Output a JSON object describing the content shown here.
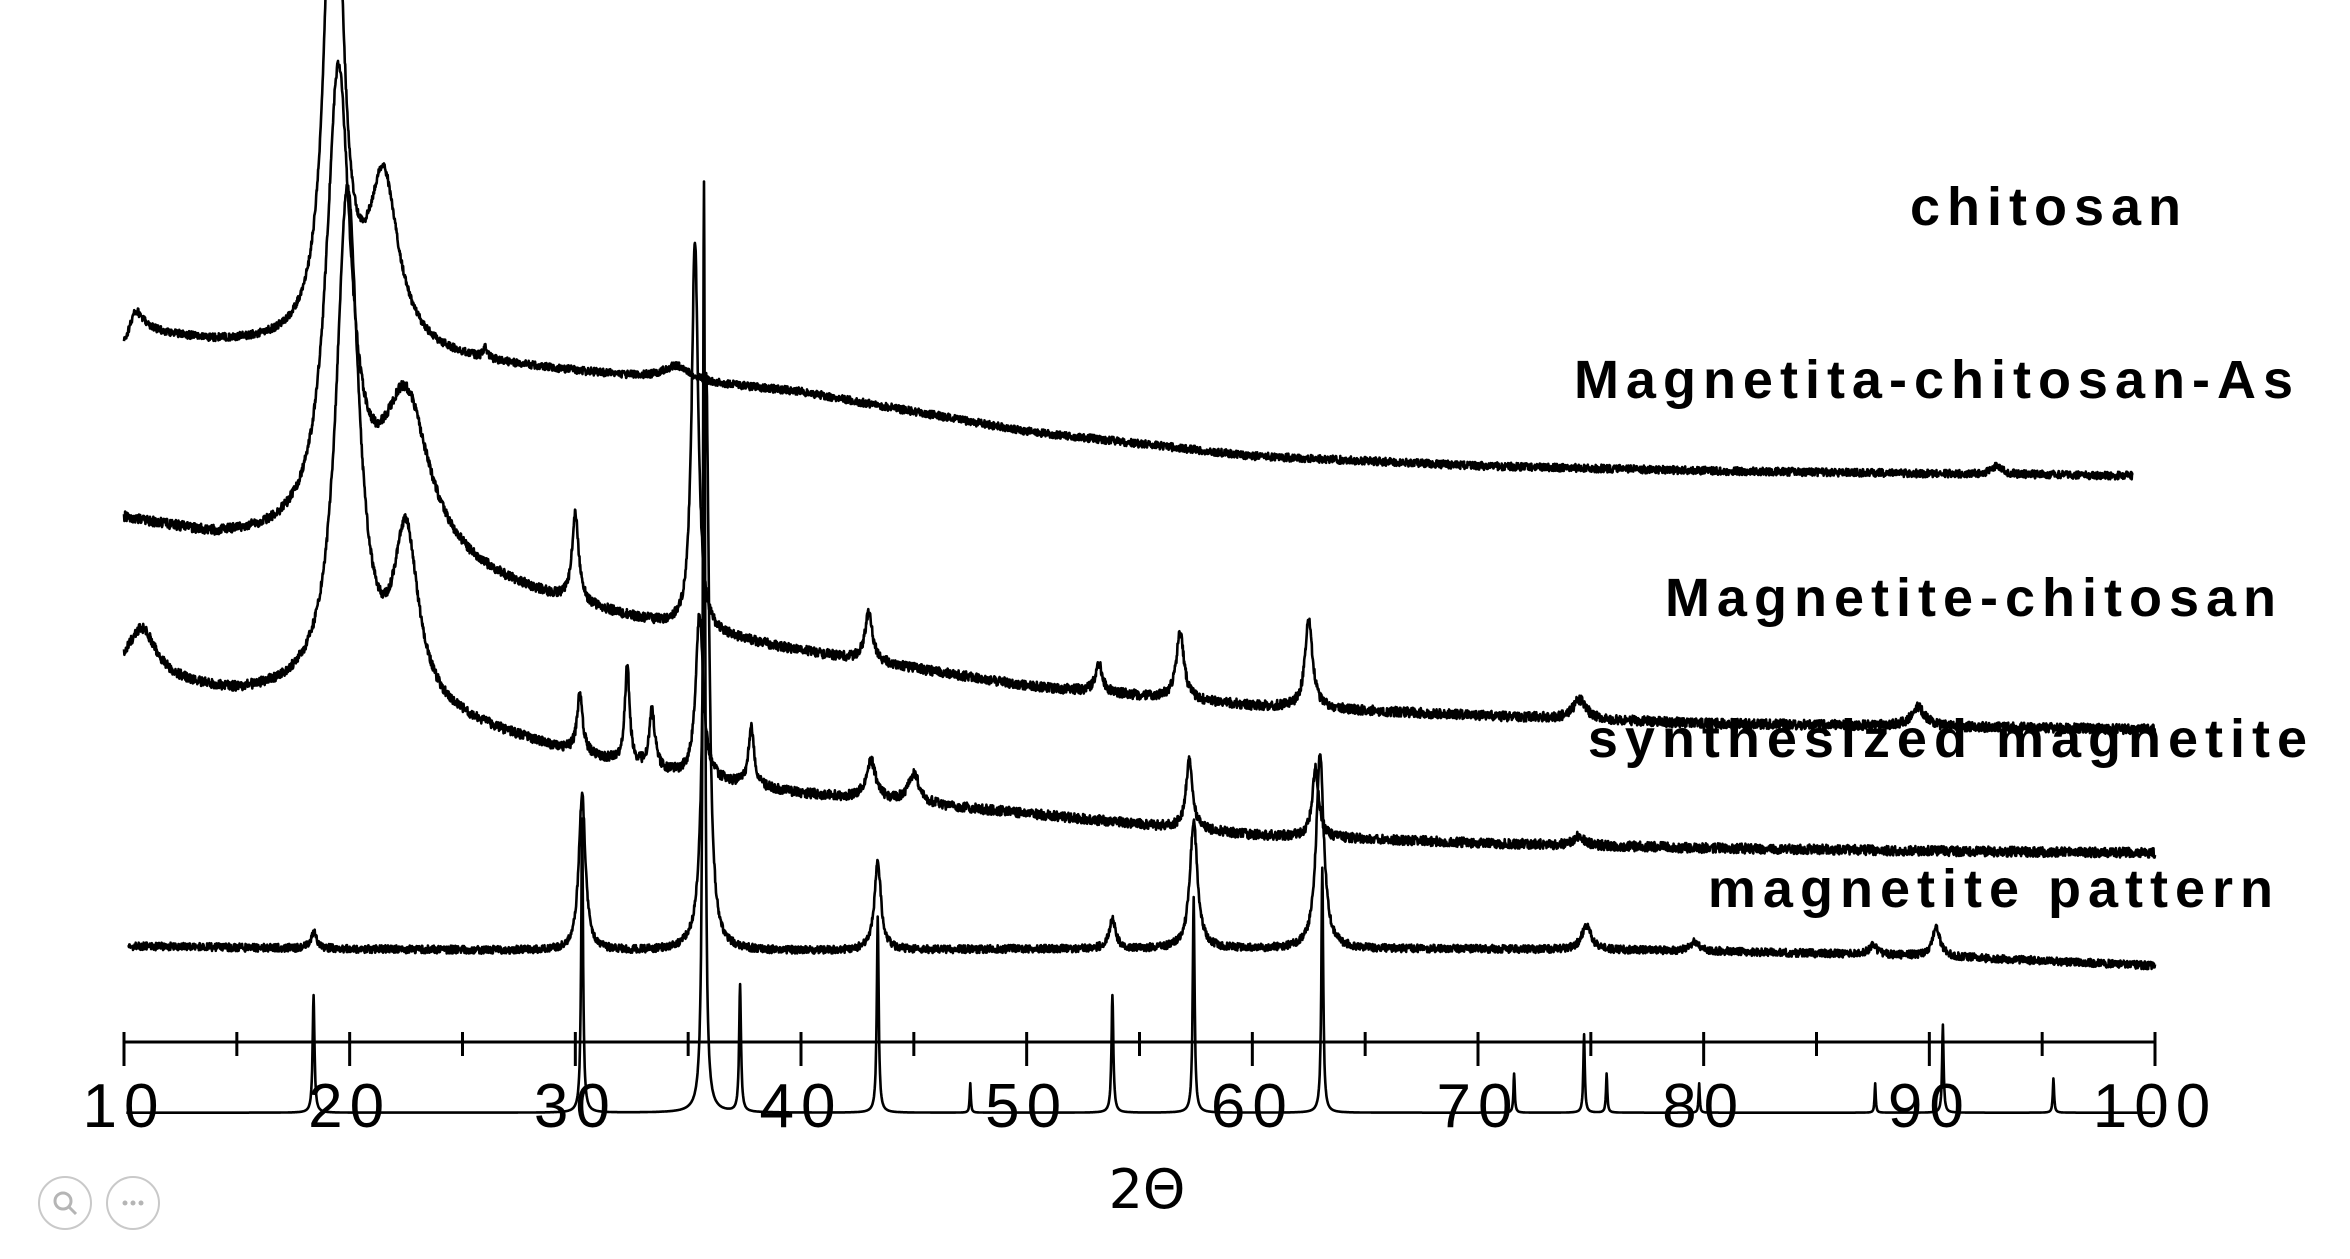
{
  "chart_data": {
    "type": "line",
    "title": "",
    "xlabel": "2Θ",
    "ylabel": "",
    "xlim": [
      10,
      100
    ],
    "x_ticks": [
      10,
      20,
      30,
      40,
      50,
      60,
      70,
      80,
      90,
      100
    ],
    "x_tick_labels": [
      "10",
      "20",
      "30",
      "40",
      "50",
      "60",
      "70",
      "80",
      "90",
      "100"
    ],
    "grid": false,
    "legend": "none",
    "y_axis_visible": false,
    "series": [
      {
        "name": "chitosan",
        "baseline": [
          [
            10,
            0.66
          ],
          [
            11,
            0.68
          ],
          [
            14,
            0.67
          ],
          [
            20,
            0.66
          ],
          [
            30,
            0.64
          ],
          [
            40,
            0.62
          ],
          [
            50,
            0.58
          ],
          [
            60,
            0.555
          ],
          [
            70,
            0.545
          ],
          [
            80,
            0.54
          ],
          [
            90,
            0.537
          ],
          [
            99,
            0.535
          ]
        ],
        "peaks": [
          [
            10.5,
            0.03,
            0.7
          ],
          [
            19.3,
            0.58,
            0.9
          ],
          [
            21.5,
            0.17,
            1.6
          ],
          [
            26,
            0.01,
            0.2
          ],
          [
            34.5,
            0.015,
            1.5
          ],
          [
            93,
            0.008,
            0.6
          ]
        ],
        "noise": 0.004
      },
      {
        "name": "Magnetita-chitosan-As",
        "baseline": [
          [
            10,
            0.49
          ],
          [
            14,
            0.47
          ],
          [
            20,
            0.46
          ],
          [
            25,
            0.43
          ],
          [
            30,
            0.4
          ],
          [
            35,
            0.375
          ],
          [
            40,
            0.355
          ],
          [
            50,
            0.32
          ],
          [
            60,
            0.3
          ],
          [
            70,
            0.29
          ],
          [
            80,
            0.282
          ],
          [
            90,
            0.279
          ],
          [
            100,
            0.276
          ]
        ],
        "peaks": [
          [
            19.5,
            0.47,
            1.3
          ],
          [
            22.5,
            0.16,
            2.5
          ],
          [
            30,
            0.09,
            0.35
          ],
          [
            35.3,
            0.4,
            0.35
          ],
          [
            43,
            0.05,
            0.4
          ],
          [
            53.2,
            0.03,
            0.35
          ],
          [
            56.8,
            0.07,
            0.4
          ],
          [
            62.5,
            0.09,
            0.4
          ],
          [
            74.5,
            0.02,
            0.7
          ],
          [
            89.5,
            0.02,
            0.7
          ]
        ],
        "noise": 0.005
      },
      {
        "name": "Magnetite-chitosan",
        "baseline": [
          [
            10,
            0.33
          ],
          [
            15,
            0.31
          ],
          [
            20,
            0.31
          ],
          [
            25,
            0.28
          ],
          [
            30,
            0.25
          ],
          [
            35,
            0.225
          ],
          [
            40,
            0.21
          ],
          [
            50,
            0.19
          ],
          [
            60,
            0.168
          ],
          [
            70,
            0.16
          ],
          [
            80,
            0.155
          ],
          [
            90,
            0.152
          ],
          [
            100,
            0.15
          ]
        ],
        "peaks": [
          [
            10.8,
            0.05,
            1.5
          ],
          [
            19.9,
            0.51,
            1.2
          ],
          [
            22.5,
            0.17,
            1.3
          ],
          [
            30.2,
            0.06,
            0.3
          ],
          [
            32.3,
            0.1,
            0.25
          ],
          [
            33.4,
            0.06,
            0.3
          ],
          [
            35.5,
            0.17,
            0.4
          ],
          [
            37.8,
            0.06,
            0.3
          ],
          [
            43.1,
            0.04,
            0.5
          ],
          [
            45,
            0.03,
            0.6
          ],
          [
            57.2,
            0.07,
            0.35
          ],
          [
            62.8,
            0.07,
            0.35
          ],
          [
            74.5,
            0.01,
            0.5
          ]
        ],
        "noise": 0.005
      },
      {
        "name": "synthesized magnetite",
        "baseline": [
          [
            10.2,
            0.055
          ],
          [
            20,
            0.052
          ],
          [
            30,
            0.05
          ],
          [
            40,
            0.05
          ],
          [
            50,
            0.052
          ],
          [
            60,
            0.052
          ],
          [
            70,
            0.052
          ],
          [
            80,
            0.05
          ],
          [
            90,
            0.045
          ],
          [
            100,
            0.035
          ]
        ],
        "peaks": [
          [
            18.4,
            0.017,
            0.3
          ],
          [
            30.3,
            0.16,
            0.35
          ],
          [
            35.8,
            0.59,
            0.3
          ],
          [
            43.4,
            0.09,
            0.35
          ],
          [
            53.8,
            0.03,
            0.35
          ],
          [
            57.4,
            0.13,
            0.4
          ],
          [
            63,
            0.2,
            0.4
          ],
          [
            74.8,
            0.025,
            0.5
          ],
          [
            79.6,
            0.01,
            0.4
          ],
          [
            87.5,
            0.01,
            0.4
          ],
          [
            90.3,
            0.03,
            0.4
          ]
        ],
        "noise": 0.004
      },
      {
        "name": "magnetite pattern",
        "baseline": [
          [
            10.1,
            -0.115
          ],
          [
            100,
            -0.115
          ]
        ],
        "peaks": [
          [
            18.4,
            0.12,
            0.1
          ],
          [
            30.3,
            0.3,
            0.1
          ],
          [
            35.7,
            0.95,
            0.12
          ],
          [
            37.3,
            0.13,
            0.1
          ],
          [
            43.4,
            0.2,
            0.1
          ],
          [
            47.5,
            0.03,
            0.06
          ],
          [
            53.8,
            0.12,
            0.1
          ],
          [
            57.4,
            0.22,
            0.1
          ],
          [
            63.1,
            0.25,
            0.1
          ],
          [
            71.6,
            0.04,
            0.07
          ],
          [
            74.7,
            0.08,
            0.08
          ],
          [
            75.7,
            0.04,
            0.07
          ],
          [
            79.8,
            0.03,
            0.06
          ],
          [
            87.6,
            0.03,
            0.06
          ],
          [
            90.6,
            0.09,
            0.08
          ],
          [
            95.5,
            0.035,
            0.07
          ]
        ],
        "noise": 0
      }
    ]
  },
  "labels": {
    "chitosan": "chitosan",
    "magnetita_chitosan_as": "Magnetita-chitosan-As",
    "magnetite_chitosan": "Magnetite-chitosan",
    "synthesized_magnetite": "synthesized magnetite",
    "magnetite_pattern": "magnetite pattern"
  },
  "viewer": {
    "zoom_icon": "magnifier-icon",
    "more_icon": "more-options-icon"
  }
}
